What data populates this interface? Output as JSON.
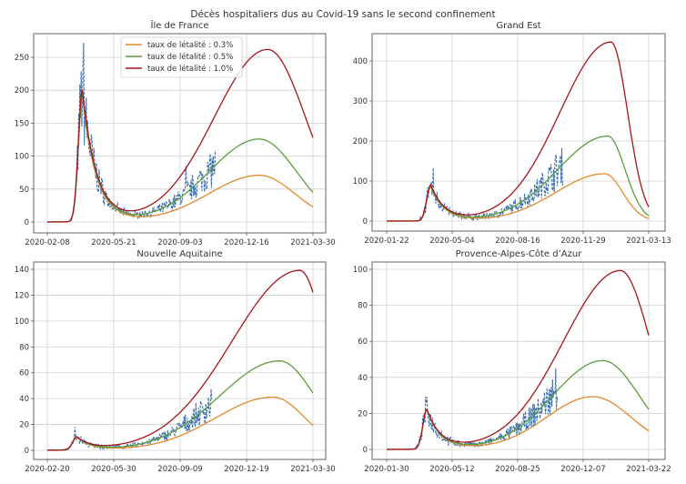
{
  "figure_title": "Décès hospitaliers dus au Covid-19 sans le second confinement",
  "colors": {
    "observed": "#3a6db0",
    "rate_0_3": "#e08a2c",
    "rate_0_5": "#5a9e3a",
    "rate_1_0": "#a8141e"
  },
  "chart_data": [
    {
      "type": "line",
      "title": "Île de France",
      "xlabel": "",
      "ylabel": "",
      "x_ticks": [
        "2020-02-08",
        "2020-05-21",
        "2020-09-03",
        "2020-12-16",
        "2021-03-30"
      ],
      "x_range": [
        "2020-02-08",
        "2021-03-30"
      ],
      "y_ticks": [
        0,
        50,
        100,
        150,
        200,
        250
      ],
      "ylim": [
        -10,
        285
      ],
      "grid": true,
      "legend": {
        "placement": "top-center",
        "entries": [
          "taux de létalité : 0.3%",
          "taux de létalité : 0.5%",
          "taux de létalité : 1.0%"
        ]
      },
      "observed_peak": {
        "value": 272,
        "date_approx": "2020-04-05"
      },
      "observed_spike": {
        "value": 85,
        "date_approx": "2020-09-12"
      },
      "series": [
        {
          "name": "taux de létalité : 0.3%",
          "key": "rate_0_3",
          "wave1_peak": 190,
          "wave1_date": "2020-04-03",
          "trough": 3,
          "wave2_peak": 70,
          "wave2_date": "2021-01-05",
          "end_value": 22
        },
        {
          "name": "taux de létalité : 0.5%",
          "key": "rate_0_5",
          "wave1_peak": 195,
          "wave1_date": "2020-04-03",
          "trough": 3,
          "wave2_peak": 125,
          "wave2_date": "2021-01-05",
          "end_value": 44
        },
        {
          "name": "taux de létalité : 1.0%",
          "key": "rate_1_0",
          "wave1_peak": 200,
          "wave1_date": "2020-04-03",
          "trough": 3,
          "wave2_peak": 261,
          "wave2_date": "2021-01-18",
          "end_value": 127
        }
      ]
    },
    {
      "type": "line",
      "title": "Grand Est",
      "xlabel": "",
      "ylabel": "",
      "x_ticks": [
        "2020-01-22",
        "2020-05-04",
        "2020-08-16",
        "2020-11-29",
        "2021-03-13"
      ],
      "x_range": [
        "2020-01-22",
        "2021-03-13"
      ],
      "y_ticks": [
        0,
        100,
        200,
        300,
        400
      ],
      "ylim": [
        -25,
        470
      ],
      "grid": true,
      "observed_peak": {
        "value": 133,
        "date_approx": "2020-04-05"
      },
      "series": [
        {
          "name": "taux de létalité : 0.3%",
          "key": "rate_0_3",
          "wave1_peak": 85,
          "wave1_date": "2020-04-01",
          "trough": 1,
          "wave2_peak": 118,
          "wave2_date": "2021-01-02",
          "end_value": 6
        },
        {
          "name": "taux de létalité : 0.5%",
          "key": "rate_0_5",
          "wave1_peak": 87,
          "wave1_date": "2020-04-01",
          "trough": 1,
          "wave2_peak": 212,
          "wave2_date": "2021-01-07",
          "end_value": 13
        },
        {
          "name": "taux de létalité : 1.0%",
          "key": "rate_1_0",
          "wave1_peak": 90,
          "wave1_date": "2020-04-01",
          "trough": 1,
          "wave2_peak": 447,
          "wave2_date": "2021-01-12",
          "end_value": 35
        }
      ]
    },
    {
      "type": "line",
      "title": "Nouvelle Aquitaine",
      "xlabel": "",
      "ylabel": "",
      "x_ticks": [
        "2020-02-20",
        "2020-05-30",
        "2020-09-09",
        "2020-12-19",
        "2021-03-30"
      ],
      "x_range": [
        "2020-02-20",
        "2021-03-30"
      ],
      "y_ticks": [
        0,
        20,
        40,
        60,
        80,
        100,
        120,
        140
      ],
      "ylim": [
        -7,
        146
      ],
      "grid": true,
      "observed_peak": {
        "value": 18,
        "date_approx": "2020-04-02"
      },
      "series": [
        {
          "name": "taux de létalité : 0.3%",
          "key": "rate_0_3",
          "wave1_peak": 10,
          "wave1_date": "2020-04-05",
          "trough": 0.5,
          "wave2_peak": 41,
          "wave2_date": "2021-01-28",
          "end_value": 19
        },
        {
          "name": "taux de létalité : 0.5%",
          "key": "rate_0_5",
          "wave1_peak": 10,
          "wave1_date": "2020-04-05",
          "trough": 0.5,
          "wave2_peak": 69,
          "wave2_date": "2021-02-07",
          "end_value": 44
        },
        {
          "name": "taux de létalité : 1.0%",
          "key": "rate_1_0",
          "wave1_peak": 10,
          "wave1_date": "2020-04-05",
          "trough": 0.5,
          "wave2_peak": 139,
          "wave2_date": "2021-03-10",
          "end_value": 122
        }
      ]
    },
    {
      "type": "line",
      "title": "Provence-Alpes-Côte d’Azur",
      "xlabel": "",
      "ylabel": "",
      "x_ticks": [
        "2020-01-30",
        "2020-05-12",
        "2020-08-25",
        "2020-12-07",
        "2021-03-22"
      ],
      "x_range": [
        "2020-01-30",
        "2021-03-22"
      ],
      "y_ticks": [
        0,
        20,
        40,
        60,
        80,
        100
      ],
      "ylim": [
        -6,
        104
      ],
      "grid": true,
      "observed_peak": {
        "value": 45,
        "date_approx": "2020-10-25"
      },
      "series": [
        {
          "name": "taux de létalité : 0.3%",
          "key": "rate_0_3",
          "wave1_peak": 22,
          "wave1_date": "2020-04-03",
          "trough": 1,
          "wave2_peak": 29,
          "wave2_date": "2020-12-23",
          "end_value": 10
        },
        {
          "name": "taux de létalité : 0.5%",
          "key": "rate_0_5",
          "wave1_peak": 22,
          "wave1_date": "2020-04-03",
          "trough": 1,
          "wave2_peak": 49,
          "wave2_date": "2021-01-08",
          "end_value": 22
        },
        {
          "name": "taux de létalité : 1.0%",
          "key": "rate_1_0",
          "wave1_peak": 22,
          "wave1_date": "2020-04-03",
          "trough": 1,
          "wave2_peak": 99,
          "wave2_date": "2021-02-05",
          "end_value": 63
        }
      ]
    }
  ]
}
